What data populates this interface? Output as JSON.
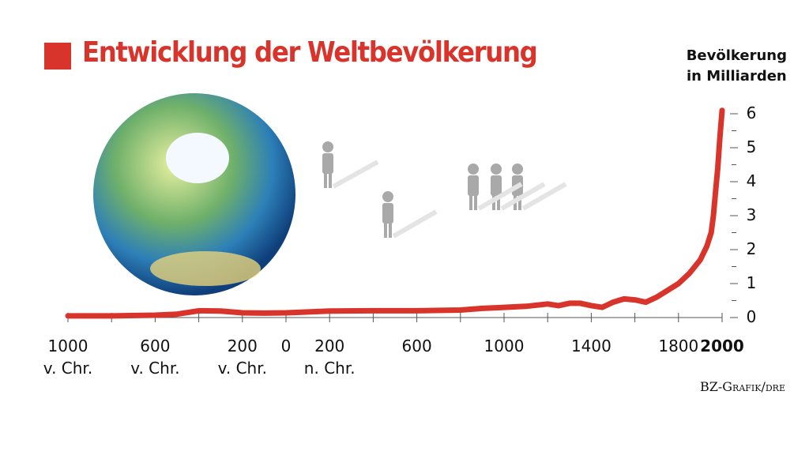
{
  "chart_data": {
    "type": "line",
    "title": "Entwicklung der Weltbevölkerung",
    "y_axis_title": "Bevölkerung\nin Milliarden",
    "source": "BZ-Grafik/dre",
    "color": "#d9342b",
    "x": [
      -1000,
      -800,
      -600,
      -500,
      -400,
      -300,
      -200,
      -100,
      0,
      200,
      400,
      600,
      800,
      900,
      1000,
      1100,
      1200,
      1250,
      1300,
      1350,
      1400,
      1450,
      1500,
      1550,
      1600,
      1650,
      1700,
      1750,
      1800,
      1850,
      1900,
      1930,
      1950,
      1960,
      1970,
      1980,
      1990,
      2000
    ],
    "values": [
      0.05,
      0.05,
      0.07,
      0.1,
      0.2,
      0.19,
      0.14,
      0.13,
      0.14,
      0.19,
      0.2,
      0.2,
      0.22,
      0.27,
      0.3,
      0.33,
      0.4,
      0.35,
      0.42,
      0.42,
      0.35,
      0.3,
      0.45,
      0.55,
      0.52,
      0.45,
      0.6,
      0.8,
      1.0,
      1.3,
      1.7,
      2.1,
      2.5,
      3.0,
      3.7,
      4.4,
      5.3,
      6.1
    ],
    "xlim": [
      -1000,
      2000
    ],
    "ylim": [
      0,
      6
    ],
    "xticks": [
      {
        "value": -1000,
        "label": "1000\nv. Chr."
      },
      {
        "value": -600,
        "label": "600\nv. Chr."
      },
      {
        "value": -200,
        "label": "200\nv. Chr."
      },
      0,
      {
        "value": 200,
        "label": "200\nn. Chr."
      },
      600,
      1000,
      1400,
      1800,
      {
        "value": 2000,
        "label": "2000",
        "bold": true
      }
    ],
    "xminorticks": [
      -800,
      -400,
      400,
      800,
      1200,
      1600
    ],
    "yticks": [
      0,
      1,
      2,
      3,
      4,
      5,
      6
    ],
    "yminorticks": [
      0.5,
      1.5,
      2.5,
      3.5,
      4.5,
      5.5
    ]
  }
}
